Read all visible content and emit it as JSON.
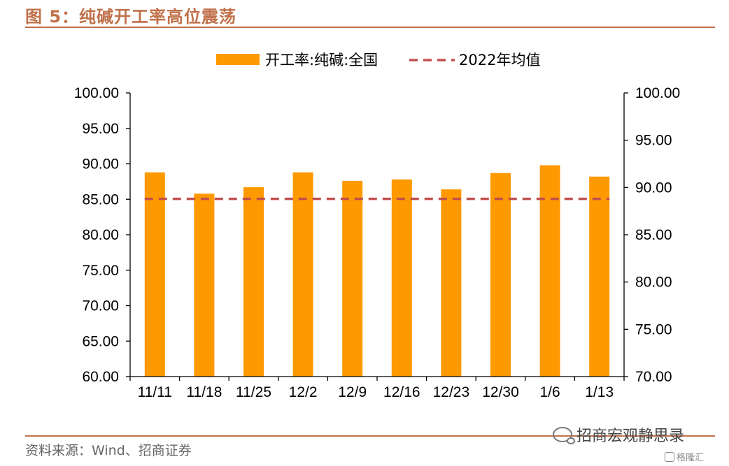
{
  "header": {
    "title": "图 5：纯碱开工率高位震荡"
  },
  "footer": {
    "source": "资料来源：Wind、招商证券",
    "watermark": "招商宏观静思录",
    "badge": "格隆汇"
  },
  "colors": {
    "bar": "#ff9900",
    "avg_line": "#c0504d",
    "rule": "#c0714a",
    "axis": "#000000"
  },
  "chart_data": {
    "type": "bar",
    "categories": [
      "11/11",
      "11/18",
      "11/25",
      "12/2",
      "12/9",
      "12/16",
      "12/23",
      "12/30",
      "1/6",
      "1/13"
    ],
    "series": [
      {
        "name": "开工率:纯碱:全国",
        "type": "bar",
        "axis": "left",
        "values": [
          88.8,
          85.8,
          86.7,
          88.8,
          87.6,
          87.8,
          86.4,
          88.7,
          89.8,
          88.2
        ]
      },
      {
        "name": "2022年均值",
        "type": "line",
        "style": "dashed",
        "axis": "right",
        "values": [
          88.8,
          88.8,
          88.8,
          88.8,
          88.8,
          88.8,
          88.8,
          88.8,
          88.8,
          88.8
        ]
      }
    ],
    "y_left": {
      "lim": [
        60,
        100
      ],
      "ticks": [
        "60.00",
        "65.00",
        "70.00",
        "75.00",
        "80.00",
        "85.00",
        "90.00",
        "95.00",
        "100.00"
      ]
    },
    "y_right": {
      "lim": [
        70,
        100
      ],
      "ticks": [
        "70.00",
        "75.00",
        "80.00",
        "85.00",
        "90.00",
        "95.00",
        "100.00"
      ]
    },
    "grid": false,
    "legend": "top-center"
  }
}
